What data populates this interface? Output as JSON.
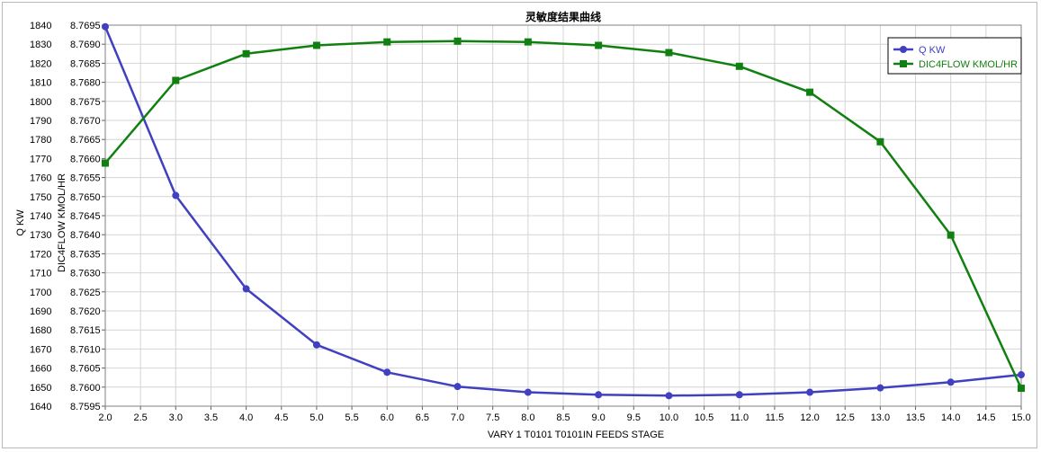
{
  "chart_data": {
    "type": "line",
    "title": "灵敏度结果曲线",
    "xlabel": "VARY   1 T0101 T0101IN FEEDS STAGE",
    "ylabel_left": "Q KW",
    "ylabel_right": "DIC4FLOW KMOL/HR",
    "xlim": [
      2.0,
      15.0
    ],
    "x_ticks": [
      2.0,
      2.5,
      3.0,
      3.5,
      4.0,
      4.5,
      5.0,
      5.5,
      6.0,
      6.5,
      7.0,
      7.5,
      8.0,
      8.5,
      9.0,
      9.5,
      10.0,
      10.5,
      11.0,
      11.5,
      12.0,
      12.5,
      13.0,
      13.5,
      14.0,
      14.5,
      15.0
    ],
    "x_tick_labels": [
      "2.0",
      "2.5",
      "3.0",
      "3.5",
      "4.0",
      "4.5",
      "5.0",
      "5.5",
      "6.0",
      "6.5",
      "7.0",
      "7.5",
      "8.0",
      "8.5",
      "9.0",
      "9.5",
      "10.0",
      "10.5",
      "11.0",
      "11.5",
      "12.0",
      "12.5",
      "13.0",
      "13.5",
      "14.0",
      "14.5",
      "15.0"
    ],
    "y_left_lim": [
      1640,
      1840
    ],
    "y_left_ticks": [
      1640,
      1650,
      1660,
      1670,
      1680,
      1690,
      1700,
      1710,
      1720,
      1730,
      1740,
      1750,
      1760,
      1770,
      1780,
      1790,
      1800,
      1810,
      1820,
      1830,
      1840
    ],
    "y_left_tick_labels": [
      "1640",
      "1650",
      "1660",
      "1670",
      "1680",
      "1690",
      "1700",
      "1710",
      "1720",
      "1730",
      "1740",
      "1750",
      "1760",
      "1770",
      "1780",
      "1790",
      "1800",
      "1810",
      "1820",
      "1830",
      "1840"
    ],
    "y_right_lim": [
      8.7595,
      8.7695
    ],
    "y_right_ticks": [
      8.7595,
      8.76,
      8.7605,
      8.761,
      8.7615,
      8.762,
      8.7625,
      8.763,
      8.7635,
      8.764,
      8.7645,
      8.765,
      8.7655,
      8.766,
      8.7665,
      8.767,
      8.7675,
      8.768,
      8.7685,
      8.769,
      8.7695
    ],
    "y_right_tick_labels": [
      "8.7595",
      "8.7600",
      "8.7605",
      "8.7610",
      "8.7615",
      "8.7620",
      "8.7625",
      "8.7630",
      "8.7635",
      "8.7640",
      "8.7645",
      "8.7650",
      "8.7655",
      "8.7660",
      "8.7665",
      "8.7670",
      "8.7675",
      "8.7680",
      "8.7685",
      "8.7690",
      "8.7695"
    ],
    "grid": true,
    "legend": "top-right",
    "series": [
      {
        "name": "Q KW",
        "axis": "left",
        "color": "#4040c0",
        "marker": "circle",
        "x": [
          2,
          3,
          4,
          5,
          6,
          7,
          8,
          9,
          10,
          11,
          12,
          13,
          14,
          15
        ],
        "values": [
          1839.2,
          1750.6,
          1701.6,
          1672.2,
          1657.8,
          1650.3,
          1647.3,
          1646.0,
          1645.5,
          1646.0,
          1647.3,
          1649.6,
          1652.6,
          1656.5
        ]
      },
      {
        "name": "DIC4FLOW KMOL/HR",
        "axis": "right",
        "color": "#108010",
        "marker": "square",
        "x": [
          2,
          3,
          4,
          5,
          6,
          7,
          8,
          9,
          10,
          11,
          12,
          13,
          14,
          15
        ],
        "values": [
          8.76588,
          8.76805,
          8.76875,
          8.76897,
          8.76906,
          8.76908,
          8.76906,
          8.76897,
          8.76878,
          8.76842,
          8.76774,
          8.76644,
          8.76399,
          8.75997
        ]
      }
    ]
  }
}
